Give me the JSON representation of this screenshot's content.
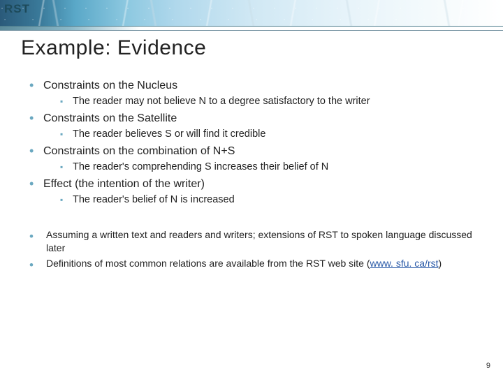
{
  "logo": "RST",
  "title": "Example: Evidence",
  "bullets": [
    {
      "text": "Constraints on the Nucleus",
      "sub": [
        "The reader may not believe N to a degree satisfactory to the writer"
      ]
    },
    {
      "text": "Constraints on the Satellite",
      "sub": [
        "The reader believes S or will find it credible"
      ]
    },
    {
      "text": "Constraints on the combination of N+S",
      "sub": [
        "The reader's comprehending S increases their belief of N"
      ]
    },
    {
      "text": "Effect (the intention of the writer)",
      "sub": [
        "The reader's belief of N is increased"
      ]
    }
  ],
  "notes": [
    {
      "text": "Assuming a written text and readers and writers; extensions of RST to spoken language discussed later"
    },
    {
      "prefix": "Definitions of most common relations are available from the RST web site (",
      "link_text": "www. sfu. ca/rst",
      "suffix": ")"
    }
  ],
  "page_number": "9",
  "colors": {
    "bullet_accent": "#6aa8c0",
    "link": "#2a5aa8",
    "text": "#222222"
  }
}
